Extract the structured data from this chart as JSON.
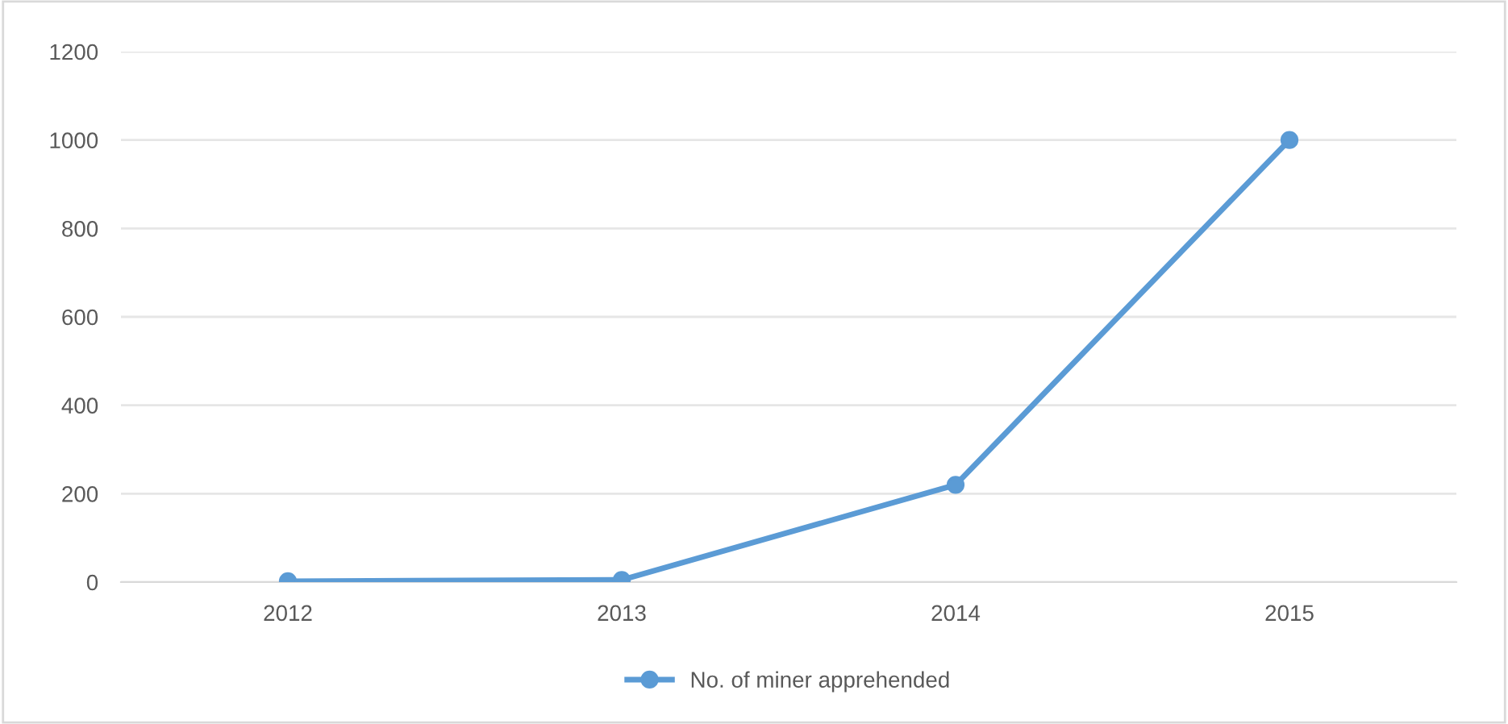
{
  "chart_data": {
    "type": "line",
    "categories": [
      "2012",
      "2013",
      "2014",
      "2015"
    ],
    "series": [
      {
        "name": "No. of miner apprehended",
        "color": "#5b9bd5",
        "values": [
          2,
          5,
          220,
          1000
        ]
      }
    ],
    "ylim": [
      0,
      1200
    ],
    "yticks": [
      0,
      200,
      400,
      600,
      800,
      1000,
      1200
    ],
    "grid": "y",
    "legend": "bottom",
    "marker": "circle",
    "line_style": "solid"
  }
}
